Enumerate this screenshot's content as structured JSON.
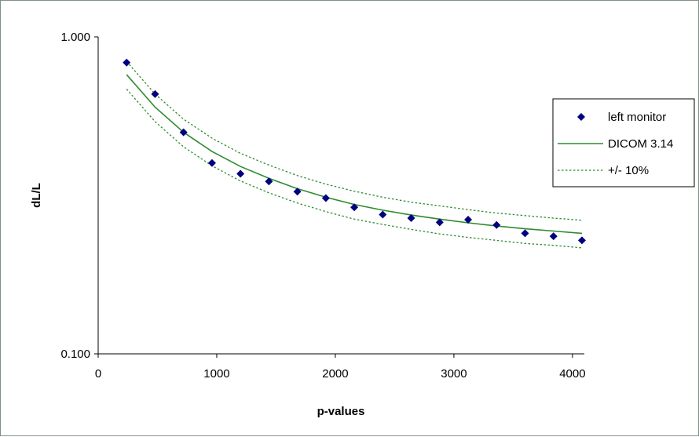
{
  "chart_data": {
    "type": "scatter",
    "xlabel": "p-values",
    "ylabel": "dL/L",
    "xlim": [
      0,
      4100
    ],
    "ylim": [
      0.1,
      1.0
    ],
    "y_scale": "log",
    "x_ticks": [
      "0",
      "1000",
      "2000",
      "3000",
      "4000"
    ],
    "x_tick_values": [
      0,
      1000,
      2000,
      3000,
      4000
    ],
    "y_ticks": [
      "0.100",
      "1.000"
    ],
    "y_tick_values": [
      0.1,
      1.0
    ],
    "grid": false,
    "legend_position": "right",
    "series": [
      {
        "name": "left monitor",
        "kind": "markers",
        "marker": "diamond",
        "color": "#000080",
        "x": [
          240,
          480,
          720,
          960,
          1200,
          1440,
          1680,
          1920,
          2160,
          2400,
          2640,
          2880,
          3120,
          3360,
          3600,
          3840,
          4080
        ],
        "y": [
          0.83,
          0.66,
          0.5,
          0.4,
          0.37,
          0.35,
          0.325,
          0.31,
          0.29,
          0.275,
          0.268,
          0.26,
          0.265,
          0.255,
          0.24,
          0.235,
          0.228
        ]
      },
      {
        "name": "DICOM 3.14",
        "kind": "line",
        "style": "solid",
        "color": "#2e8b2e",
        "x": [
          240,
          480,
          720,
          960,
          1200,
          1440,
          1680,
          1920,
          2160,
          2400,
          2640,
          2880,
          3120,
          3360,
          3600,
          3840,
          4080
        ],
        "y": [
          0.76,
          0.6,
          0.5,
          0.435,
          0.39,
          0.358,
          0.332,
          0.312,
          0.296,
          0.284,
          0.274,
          0.266,
          0.259,
          0.253,
          0.248,
          0.244,
          0.24
        ]
      },
      {
        "name": "+/- 10%",
        "kind": "line",
        "style": "dotted",
        "color": "#2e8b2e",
        "x": [
          240,
          480,
          720,
          960,
          1200,
          1440,
          1680,
          1920,
          2160,
          2400,
          2640,
          2880,
          3120,
          3360,
          3600,
          3840,
          4080
        ],
        "y": [
          0.836,
          0.66,
          0.55,
          0.479,
          0.429,
          0.394,
          0.365,
          0.343,
          0.326,
          0.312,
          0.301,
          0.293,
          0.285,
          0.278,
          0.273,
          0.268,
          0.264
        ]
      },
      {
        "name": "",
        "kind": "line",
        "style": "dotted",
        "color": "#2e8b2e",
        "x": [
          240,
          480,
          720,
          960,
          1200,
          1440,
          1680,
          1920,
          2160,
          2400,
          2640,
          2880,
          3120,
          3360,
          3600,
          3840,
          4080
        ],
        "y": [
          0.684,
          0.54,
          0.45,
          0.392,
          0.351,
          0.322,
          0.299,
          0.281,
          0.266,
          0.256,
          0.247,
          0.239,
          0.233,
          0.228,
          0.223,
          0.22,
          0.216
        ]
      }
    ],
    "legend": [
      {
        "label": "left monitor",
        "symbol": "diamond"
      },
      {
        "label": "DICOM 3.14",
        "symbol": "solid-line"
      },
      {
        "label": "+/- 10%",
        "symbol": "dotted-line"
      }
    ]
  }
}
